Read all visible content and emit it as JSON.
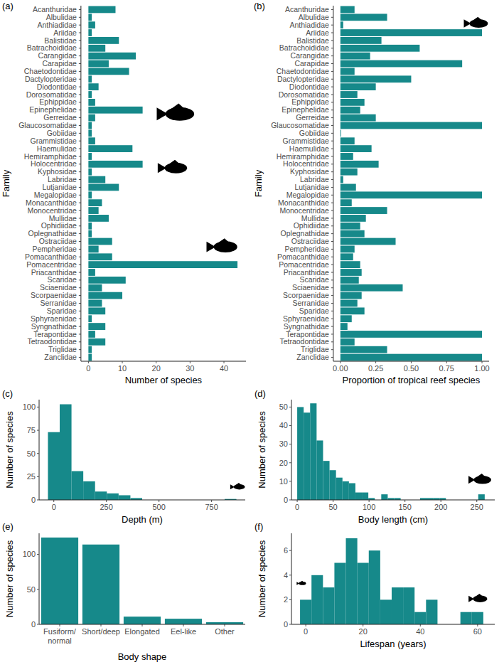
{
  "chart_data": [
    {
      "type": "bar",
      "orientation": "horizontal",
      "title": "(a)",
      "x_label": "Number of species",
      "y_label": "Family",
      "categories": [
        "Acanthuridae",
        "Albulidae",
        "Anthiadidae",
        "Ariidae",
        "Balistidae",
        "Batrachoididae",
        "Carangidae",
        "Carapidae",
        "Chaetodontidae",
        "Dactylopteridae",
        "Diodontidae",
        "Dorosomatidae",
        "Ephippidae",
        "Epinephelidae",
        "Gerreidae",
        "Glaucosomatidae",
        "Gobiidae",
        "Grammistidae",
        "Haemulidae",
        "Hemiramphidae",
        "Holocentridae",
        "Kyphosidae",
        "Labridae",
        "Lutjanidae",
        "Megalopidae",
        "Monacanthidae",
        "Monocentridae",
        "Mullidae",
        "Ophidiidae",
        "Oplegnathidae",
        "Ostraciidae",
        "Pempheridae",
        "Pomacanthidae",
        "Pomacentridae",
        "Priacanthidae",
        "Scaridae",
        "Sciaenidae",
        "Scorpaenidae",
        "Serranidae",
        "Sparidae",
        "Sphyraenidae",
        "Syngnathidae",
        "Terapontidae",
        "Tetraodontidae",
        "Triglidae",
        "Zanclidae"
      ],
      "values": [
        8,
        1,
        2,
        1,
        9,
        5,
        14,
        6,
        12,
        1,
        3,
        1,
        2,
        16,
        2,
        1,
        1,
        2,
        13,
        1,
        16,
        1,
        5,
        9,
        1,
        4,
        3,
        6,
        1,
        1,
        7,
        3,
        7,
        44,
        2,
        11,
        4,
        10,
        4,
        5,
        1,
        5,
        2,
        5,
        1,
        1
      ],
      "color": "#16898a",
      "xlim": [
        -2.2,
        46.5
      ],
      "xticks": [
        0,
        10,
        20,
        30,
        40
      ],
      "grid": false
    },
    {
      "type": "bar",
      "orientation": "horizontal",
      "title": "(b)",
      "x_label": "Proportion of tropical reef species",
      "y_label": "Family",
      "categories": [
        "Acanthuridae",
        "Albulidae",
        "Anthiadidae",
        "Ariidae",
        "Balistidae",
        "Batrachoididae",
        "Carangidae",
        "Carapidae",
        "Chaetodontidae",
        "Dactylopteridae",
        "Diodontidae",
        "Dorosomatidae",
        "Ephippidae",
        "Epinephelidae",
        "Gerreidae",
        "Glaucosomatidae",
        "Gobiidae",
        "Grammistidae",
        "Haemulidae",
        "Hemiramphidae",
        "Holocentridae",
        "Kyphosidae",
        "Labridae",
        "Lutjanidae",
        "Megalopidae",
        "Monacanthidae",
        "Monocentridae",
        "Mullidae",
        "Ophidiidae",
        "Oplegnathidae",
        "Ostraciidae",
        "Pempheridae",
        "Pomacanthidae",
        "Pomacentridae",
        "Priacanthidae",
        "Scaridae",
        "Sciaenidae",
        "Scorpaenidae",
        "Serranidae",
        "Sparidae",
        "Sphyraenidae",
        "Syngnathidae",
        "Terapontidae",
        "Tetraodontidae",
        "Triglidae",
        "Zanclidae"
      ],
      "values": [
        0.1,
        0.33,
        0.02,
        1,
        0.29,
        0.56,
        0.21,
        0.86,
        0.1,
        0.5,
        0.25,
        0.12,
        0.17,
        0.14,
        0.25,
        1,
        0.005,
        0.1,
        0.22,
        0.09,
        0.27,
        0.12,
        0.02,
        0.11,
        1,
        0.08,
        0.33,
        0.18,
        0.14,
        0.17,
        0.39,
        0.1,
        0.09,
        0.14,
        0.15,
        0.13,
        0.44,
        0.15,
        0.12,
        0.17,
        0.08,
        0.05,
        1,
        0.1,
        0.33,
        1
      ],
      "color": "#16898a",
      "xlim": [
        -0.05,
        1.05
      ],
      "xticks": [
        {
          "value": 0,
          "label": "0.00"
        },
        {
          "value": 0.25,
          "label": "0.25"
        },
        {
          "value": 0.5,
          "label": "0.50"
        },
        {
          "value": 0.75,
          "label": "0.75"
        },
        {
          "value": 1,
          "label": "1.00"
        }
      ],
      "grid": false
    },
    {
      "type": "histogram",
      "title": "(c)",
      "x_label": "Depth (m)",
      "y_label": "Number of species",
      "bins": [
        -28,
        28,
        84,
        140,
        196,
        252,
        308,
        364,
        420,
        476,
        532,
        588,
        644,
        700,
        756,
        812,
        868
      ],
      "values": [
        73,
        103,
        31,
        20,
        9,
        7,
        5,
        2,
        0,
        0,
        0,
        0,
        0,
        0,
        0,
        1
      ],
      "color": "#16898a",
      "xlim": [
        -70,
        910
      ],
      "xticks": [
        0,
        250,
        500,
        750
      ],
      "ylim": [
        0,
        108
      ],
      "yticks": [
        0,
        25,
        50,
        75,
        100
      ],
      "grid": false
    },
    {
      "type": "histogram",
      "title": "(d)",
      "x_label": "Body length (cm)",
      "y_label": "Number of species",
      "bins": [
        0,
        9,
        18,
        27,
        36,
        45,
        54,
        63,
        72,
        81,
        90,
        99,
        108,
        117,
        126,
        135,
        144,
        153,
        162,
        171,
        180,
        189,
        198,
        207,
        216,
        225,
        234,
        243,
        252,
        261
      ],
      "values": [
        50,
        47,
        52,
        32,
        21,
        16,
        12,
        10,
        9,
        4,
        4,
        1,
        0,
        3,
        1,
        1,
        0,
        0,
        0,
        1,
        1,
        1,
        1,
        0,
        0,
        0,
        0,
        0,
        3
      ],
      "color": "#16898a",
      "xlim": [
        -8,
        275
      ],
      "xticks": [
        0,
        50,
        100,
        150,
        200,
        250
      ],
      "ylim": [
        0,
        54
      ],
      "yticks": [
        0,
        10,
        20,
        30,
        40,
        50
      ],
      "grid": false
    },
    {
      "type": "bar",
      "title": "(e)",
      "x_label": "Body shape",
      "y_label": "Number of species",
      "categories": [
        "Fusiform/normal",
        "Short/deep",
        "Elongated",
        "Eel-like",
        "Other"
      ],
      "values": [
        124,
        114,
        11,
        8,
        3
      ],
      "color": "#16898a",
      "ylim": [
        0,
        130
      ],
      "yticks": [
        0,
        50,
        100
      ],
      "grid": false
    },
    {
      "type": "histogram",
      "title": "(f)",
      "x_label": "Lifespan (years)",
      "y_label": "Number of species",
      "bins": [
        -2,
        2,
        6,
        10,
        14,
        18,
        22,
        26,
        30,
        34,
        38,
        42,
        46,
        50,
        54,
        58,
        62
      ],
      "values": [
        2,
        4,
        3,
        5,
        7,
        5,
        6,
        2,
        3,
        3,
        1,
        2,
        0,
        0,
        1,
        1
      ],
      "color": "#16898a",
      "xlim": [
        -5,
        66
      ],
      "xticks": [
        0,
        20,
        40,
        60
      ],
      "ylim": [
        0,
        7.4
      ],
      "yticks": [
        0,
        2,
        4,
        6
      ],
      "grid": false
    }
  ]
}
